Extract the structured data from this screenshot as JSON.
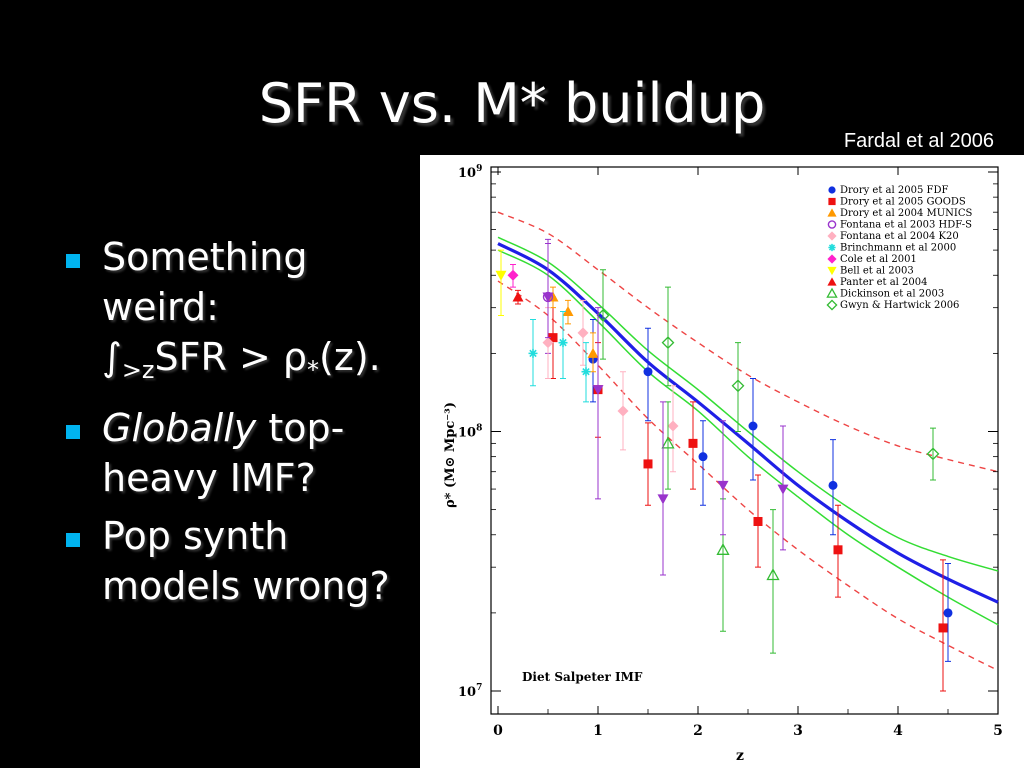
{
  "slide": {
    "title": "SFR vs. M* buildup",
    "citation": "Fardal et al 2006"
  },
  "bullets": [
    {
      "line1": "Something",
      "line2": "weird:",
      "integral": "∫",
      "sub": ">z",
      "expr": "SFR > ρ",
      "star_sub": "*",
      "tail": "(z)."
    },
    {
      "italic": "Globally",
      "rest": " top-",
      "line2": "heavy IMF?"
    },
    {
      "line1": "Pop synth",
      "line2": "models wrong?"
    }
  ],
  "colors": {
    "background": "#000000",
    "bullet": "#00b4f0",
    "model_blue": "#1f1fe6",
    "model_green": "#33dd33",
    "model_red_dashed": "#ee4444"
  },
  "chart_data": {
    "type": "scatter",
    "xlabel": "z",
    "ylabel": "ρ* (M⊙ Mpc⁻³)",
    "annotation": "Diet Salpeter IMF",
    "xlim": [
      0,
      5
    ],
    "ylim": [
      10000000.0,
      1000000000.0
    ],
    "yscale": "log",
    "x_ticks": [
      "0",
      "1",
      "2",
      "3",
      "4",
      "5"
    ],
    "y_ticks": [
      {
        "base": "10",
        "exp": "7"
      },
      {
        "base": "10",
        "exp": "8"
      },
      {
        "base": "10",
        "exp": "9"
      }
    ],
    "legend_position": "top-right",
    "series": [
      {
        "name": "Drory et al 2005 FDF",
        "color": "#1030e0",
        "marker": "circle",
        "points": [
          {
            "x": 0.95,
            "y": 190000000.0,
            "lo": 130000000.0,
            "hi": 270000000.0
          },
          {
            "x": 1.5,
            "y": 170000000.0,
            "lo": 110000000.0,
            "hi": 250000000.0
          },
          {
            "x": 2.05,
            "y": 80000000.0,
            "lo": 52000000.0,
            "hi": 110000000.0
          },
          {
            "x": 2.55,
            "y": 105000000.0,
            "lo": 65000000.0,
            "hi": 160000000.0
          },
          {
            "x": 3.35,
            "y": 62000000.0,
            "lo": 40000000.0,
            "hi": 93000000.0
          },
          {
            "x": 4.5,
            "y": 20000000.0,
            "lo": 13000000.0,
            "hi": 31000000.0
          }
        ]
      },
      {
        "name": "Drory et al 2005 GOODS",
        "color": "#ee1111",
        "marker": "square",
        "points": [
          {
            "x": 0.55,
            "y": 230000000.0,
            "lo": 160000000.0,
            "hi": 330000000.0
          },
          {
            "x": 1.0,
            "y": 145000000.0,
            "lo": 95000000.0,
            "hi": 220000000.0
          },
          {
            "x": 1.5,
            "y": 75000000.0,
            "lo": 52000000.0,
            "hi": 108000000.0
          },
          {
            "x": 1.95,
            "y": 90000000.0,
            "lo": 60000000.0,
            "hi": 130000000.0
          },
          {
            "x": 2.6,
            "y": 45000000.0,
            "lo": 30000000.0,
            "hi": 68000000.0
          },
          {
            "x": 3.4,
            "y": 35000000.0,
            "lo": 23000000.0,
            "hi": 52000000.0
          },
          {
            "x": 4.45,
            "y": 17500000.0,
            "lo": 10000000.0,
            "hi": 32000000.0
          }
        ]
      },
      {
        "name": "Drory et al 2004 MUNICS",
        "color": "#ff9900",
        "marker": "triangle",
        "points": [
          {
            "x": 0.55,
            "y": 330000000.0,
            "lo": 300000000.0,
            "hi": 360000000.0
          },
          {
            "x": 0.7,
            "y": 290000000.0,
            "lo": 260000000.0,
            "hi": 320000000.0
          },
          {
            "x": 0.95,
            "y": 200000000.0,
            "lo": 170000000.0,
            "hi": 240000000.0
          }
        ]
      },
      {
        "name": "Fontana et al 2003 HDF-S",
        "color": "#9933cc",
        "marker": "open-circle",
        "points": [
          {
            "x": 0.5,
            "y": 330000000.0,
            "lo": 200000000.0,
            "hi": 550000000.0
          }
        ]
      },
      {
        "name": "Fontana et al 2004 K20",
        "color": "#ffb0c0",
        "marker": "diamond",
        "points": [
          {
            "x": 0.5,
            "y": 220000000.0,
            "lo": 160000000.0,
            "hi": 300000000.0
          },
          {
            "x": 0.85,
            "y": 240000000.0,
            "lo": 180000000.0,
            "hi": 320000000.0
          },
          {
            "x": 1.25,
            "y": 120000000.0,
            "lo": 85000000.0,
            "hi": 170000000.0
          },
          {
            "x": 1.75,
            "y": 105000000.0,
            "lo": 70000000.0,
            "hi": 150000000.0
          }
        ]
      },
      {
        "name": "Brinchmann et al 2000",
        "color": "#22dddd",
        "marker": "asterisk",
        "points": [
          {
            "x": 0.35,
            "y": 200000000.0,
            "lo": 150000000.0,
            "hi": 270000000.0
          },
          {
            "x": 0.65,
            "y": 220000000.0,
            "lo": 160000000.0,
            "hi": 290000000.0
          },
          {
            "x": 0.88,
            "y": 170000000.0,
            "lo": 130000000.0,
            "hi": 220000000.0
          }
        ]
      },
      {
        "name": "Cole et al 2001",
        "color": "#ff22cc",
        "marker": "diamond",
        "points": [
          {
            "x": 0.15,
            "y": 400000000.0,
            "lo": 360000000.0,
            "hi": 440000000.0
          }
        ]
      },
      {
        "name": "Bell et al 2003",
        "color": "#ffff00",
        "marker": "triangle-down",
        "points": [
          {
            "x": 0.03,
            "y": 400000000.0,
            "lo": 280000000.0,
            "hi": 500000000.0
          }
        ]
      },
      {
        "name": "Panter et al 2004",
        "color": "#ee1111",
        "marker": "triangle",
        "points": [
          {
            "x": 0.2,
            "y": 330000000.0,
            "lo": 310000000.0,
            "hi": 350000000.0
          }
        ]
      },
      {
        "name": "Dickinson et al 2003",
        "color": "#33bb33",
        "marker": "open-triangle",
        "points": [
          {
            "x": 1.7,
            "y": 90000000.0,
            "lo": 60000000.0,
            "hi": 130000000.0
          },
          {
            "x": 2.25,
            "y": 35000000.0,
            "lo": 17000000.0,
            "hi": 55000000.0
          },
          {
            "x": 2.75,
            "y": 28000000.0,
            "lo": 14000000.0,
            "hi": 50000000.0
          }
        ]
      },
      {
        "name": "Gwyn & Hartwick 2006",
        "color": "#33bb33",
        "marker": "open-diamond",
        "points": [
          {
            "x": 1.05,
            "y": 280000000.0,
            "lo": 190000000.0,
            "hi": 420000000.0
          },
          {
            "x": 1.7,
            "y": 220000000.0,
            "lo": 150000000.0,
            "hi": 360000000.0
          },
          {
            "x": 2.4,
            "y": 150000000.0,
            "lo": 100000000.0,
            "hi": 220000000.0
          },
          {
            "x": 4.35,
            "y": 82000000.0,
            "lo": 65000000.0,
            "hi": 103000000.0
          }
        ]
      },
      {
        "name": "",
        "color": "#9933cc",
        "marker": "triangle-down",
        "points": [
          {
            "x": 0.5,
            "y": 330000000.0,
            "lo": 230000000.0,
            "hi": 530000000.0
          },
          {
            "x": 1.0,
            "y": 145000000.0,
            "lo": 55000000.0,
            "hi": 300000000.0
          },
          {
            "x": 1.65,
            "y": 55000000.0,
            "lo": 28000000.0,
            "hi": 130000000.0
          },
          {
            "x": 2.25,
            "y": 62000000.0,
            "lo": 40000000.0,
            "hi": 110000000.0
          },
          {
            "x": 2.85,
            "y": 60000000.0,
            "lo": 35000000.0,
            "hi": 105000000.0
          }
        ]
      }
    ],
    "curves": [
      {
        "style": "model-blue",
        "x": [
          0,
          0.5,
          1,
          1.5,
          2,
          2.5,
          3,
          3.5,
          4,
          4.5,
          5
        ],
        "y": [
          530000000.0,
          420000000.0,
          285000000.0,
          185000000.0,
          130000000.0,
          90000000.0,
          62000000.0,
          45000000.0,
          34000000.0,
          27000000.0,
          22000000.0
        ]
      },
      {
        "style": "model-green",
        "x": [
          0,
          0.5,
          1,
          1.5,
          2,
          2.5,
          3,
          3.5,
          4,
          4.5,
          5
        ],
        "y": [
          560000000.0,
          450000000.0,
          310000000.0,
          205000000.0,
          145000000.0,
          100000000.0,
          70000000.0,
          51000000.0,
          39000000.0,
          33000000.0,
          29000000.0
        ]
      },
      {
        "style": "model-green",
        "x": [
          0,
          0.5,
          1,
          1.5,
          2,
          2.5,
          3,
          3.5,
          4,
          4.5,
          5
        ],
        "y": [
          500000000.0,
          400000000.0,
          265000000.0,
          170000000.0,
          120000000.0,
          80000000.0,
          56000000.0,
          40000000.0,
          30000000.0,
          23000000.0,
          18000000.0
        ]
      },
      {
        "style": "model-red-dashed",
        "x": [
          0,
          0.5,
          1,
          1.5,
          2,
          2.5,
          3,
          3.5,
          4,
          4.5,
          5
        ],
        "y": [
          700000000.0,
          580000000.0,
          420000000.0,
          300000000.0,
          220000000.0,
          165000000.0,
          130000000.0,
          105000000.0,
          88000000.0,
          78000000.0,
          70000000.0
        ]
      },
      {
        "style": "model-red-dashed",
        "x": [
          0,
          0.5,
          1,
          1.5,
          2,
          2.5,
          3,
          3.5,
          4,
          4.5,
          5
        ],
        "y": [
          380000000.0,
          280000000.0,
          180000000.0,
          112000000.0,
          75000000.0,
          50000000.0,
          35000000.0,
          25500000.0,
          19000000.0,
          15000000.0,
          12000000.0
        ]
      }
    ]
  }
}
